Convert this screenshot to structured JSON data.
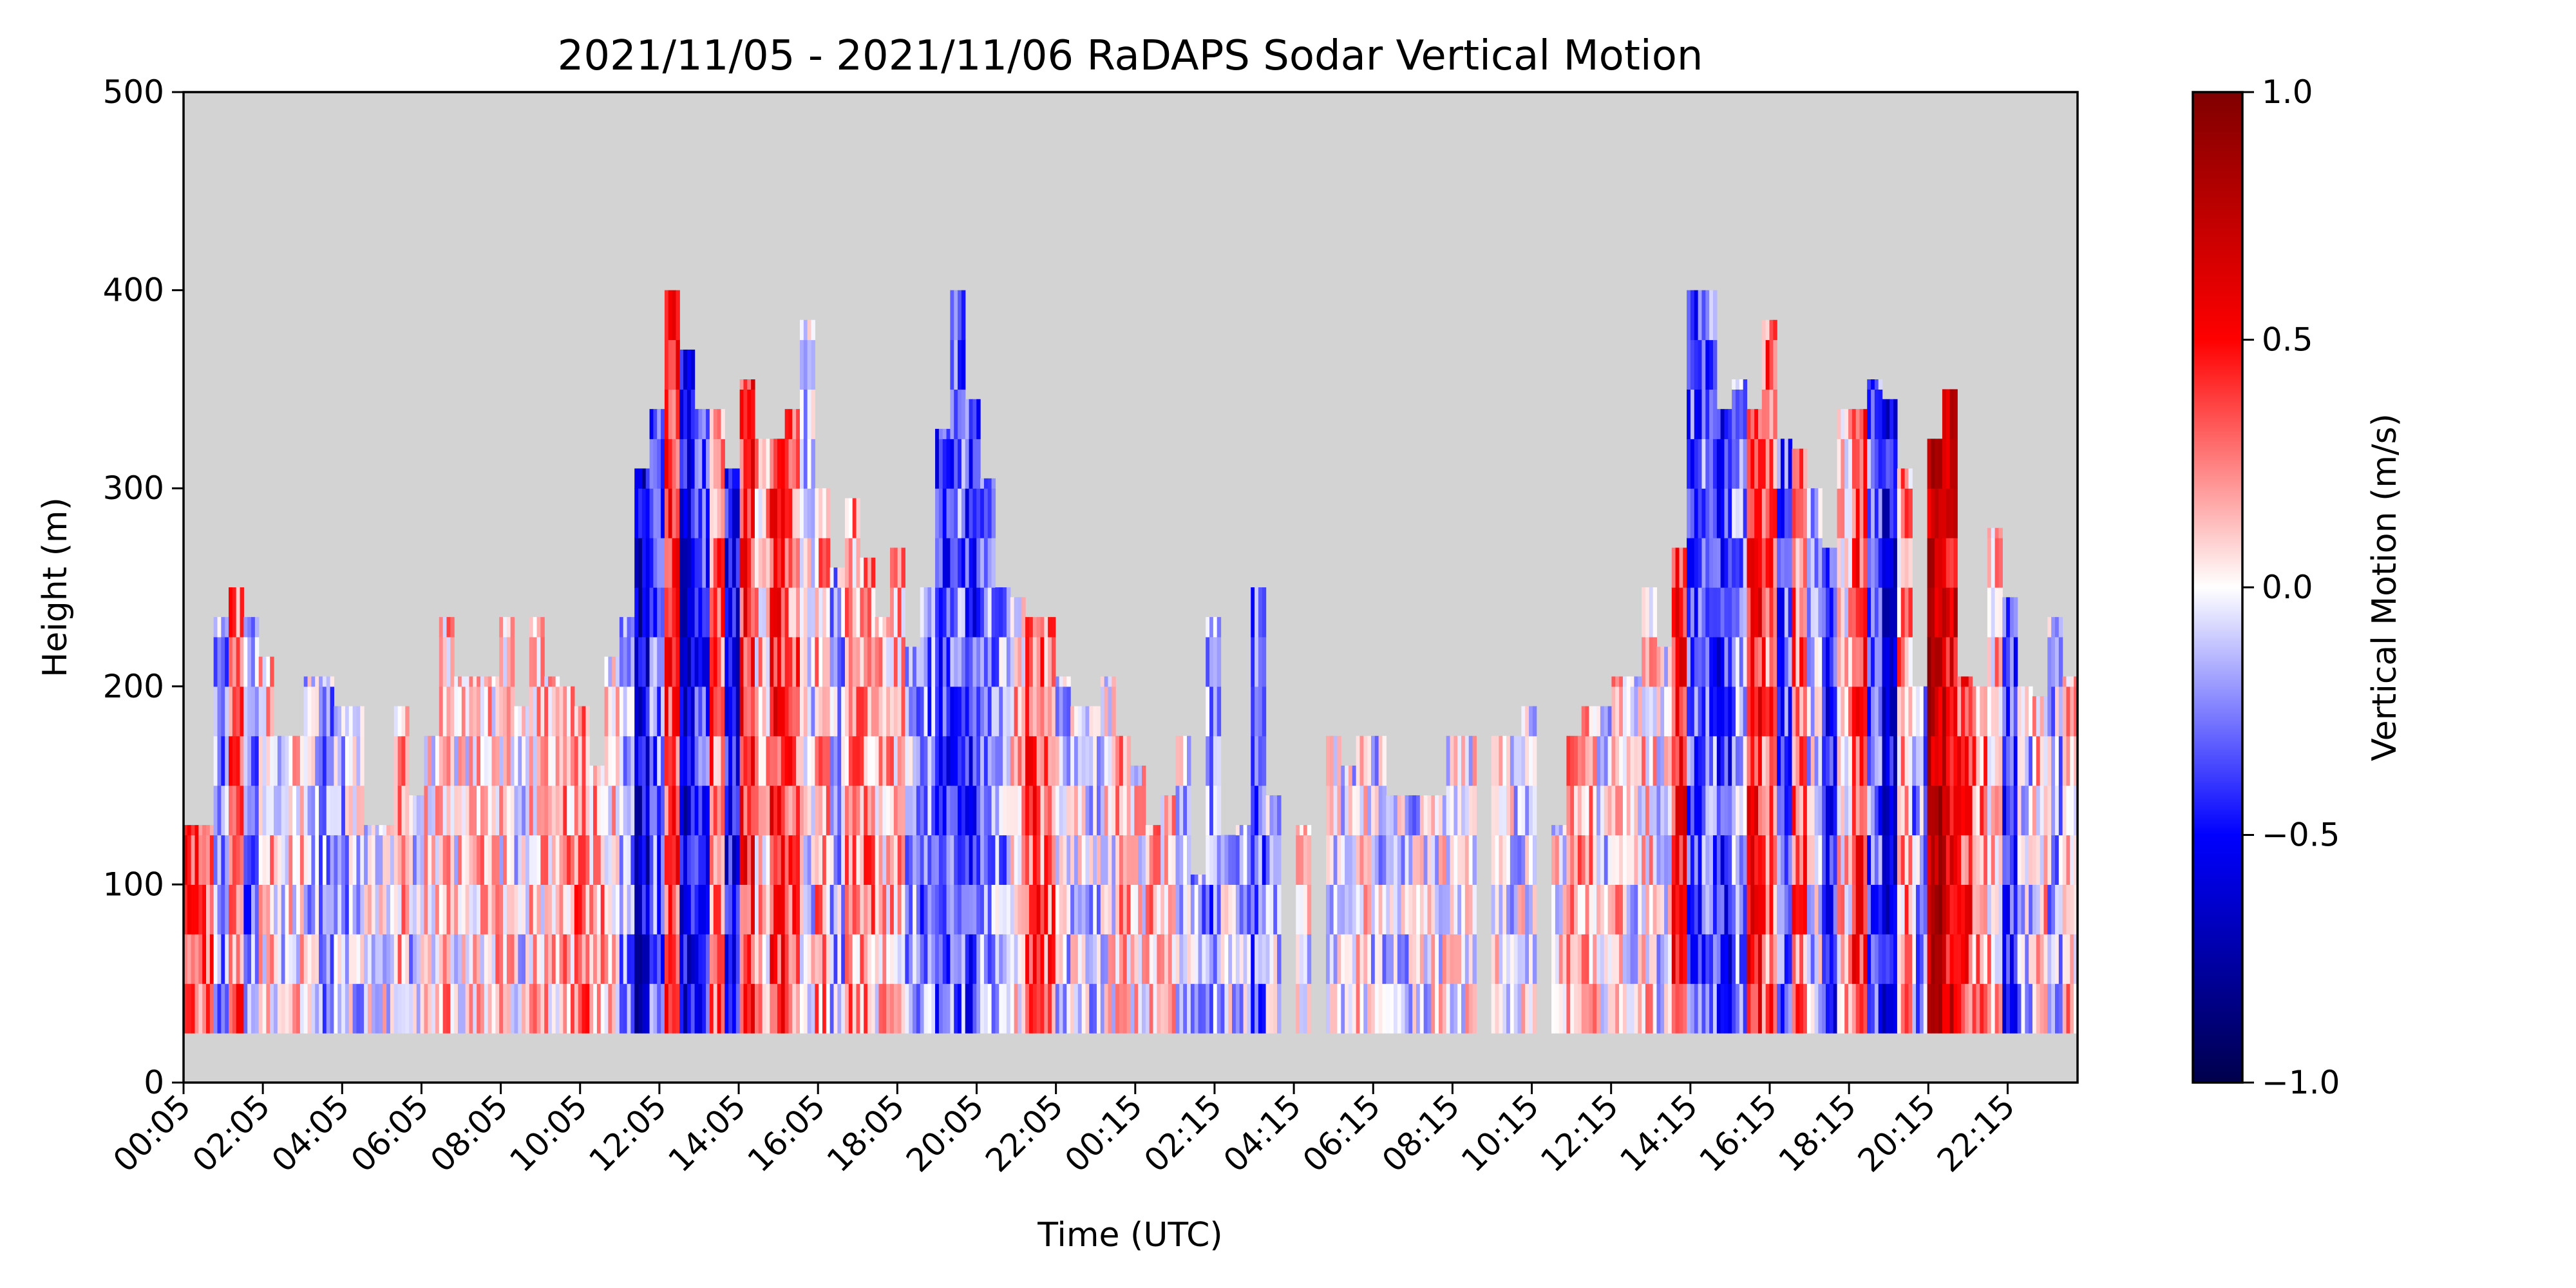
{
  "chart_data": {
    "type": "heatmap",
    "title": "2021/11/05 - 2021/11/06 RaDAPS Sodar Vertical Motion",
    "xlabel": "Time (UTC)",
    "ylabel": "Height (m)",
    "ylim": [
      0,
      500
    ],
    "y_ticks": [
      "0",
      "100",
      "200",
      "300",
      "400",
      "500"
    ],
    "x_ticks": [
      "00:05",
      "02:05",
      "04:05",
      "06:05",
      "08:05",
      "10:05",
      "12:05",
      "14:05",
      "16:05",
      "18:05",
      "20:05",
      "22:05",
      "00:15",
      "02:15",
      "04:15",
      "06:15",
      "08:15",
      "10:15",
      "12:15",
      "14:15",
      "16:15",
      "18:15",
      "20:15",
      "22:15"
    ],
    "colorbar": {
      "label": "Vertical Motion (m/s)",
      "range": [
        -1.0,
        1.0
      ],
      "ticks": [
        "−1.0",
        "−0.5",
        "0.0",
        "0.5",
        "1.0"
      ],
      "colormap": "seismic"
    },
    "background_color": "#d3d3d3",
    "grid": false,
    "min_height": 25,
    "profiles": [
      {
        "time_index": 0,
        "top": 130,
        "mean": 0.35
      },
      {
        "time_index": 1,
        "top": 130,
        "mean": 0.3
      },
      {
        "time_index": 2,
        "top": 235,
        "mean": -0.2
      },
      {
        "time_index": 3,
        "top": 250,
        "mean": 0.3
      },
      {
        "time_index": 4,
        "top": 235,
        "mean": -0.25
      },
      {
        "time_index": 5,
        "top": 215,
        "mean": 0.1
      },
      {
        "time_index": 6,
        "top": 175,
        "mean": -0.05
      },
      {
        "time_index": 7,
        "top": 175,
        "mean": 0.05
      },
      {
        "time_index": 8,
        "top": 205,
        "mean": -0.1
      },
      {
        "time_index": 9,
        "top": 205,
        "mean": -0.2
      },
      {
        "time_index": 10,
        "top": 190,
        "mean": -0.15
      },
      {
        "time_index": 11,
        "top": 190,
        "mean": -0.1
      },
      {
        "time_index": 12,
        "top": 130,
        "mean": 0.0
      },
      {
        "time_index": 13,
        "top": 130,
        "mean": 0.0
      },
      {
        "time_index": 14,
        "top": 190,
        "mean": 0.15
      },
      {
        "time_index": 15,
        "top": 145,
        "mean": -0.1
      },
      {
        "time_index": 16,
        "top": 175,
        "mean": 0.05
      },
      {
        "time_index": 17,
        "top": 235,
        "mean": 0.15
      },
      {
        "time_index": 18,
        "top": 205,
        "mean": 0.05
      },
      {
        "time_index": 19,
        "top": 205,
        "mean": 0.1
      },
      {
        "time_index": 20,
        "top": 205,
        "mean": 0.1
      },
      {
        "time_index": 21,
        "top": 235,
        "mean": 0.05
      },
      {
        "time_index": 22,
        "top": 190,
        "mean": -0.05
      },
      {
        "time_index": 23,
        "top": 235,
        "mean": 0.1
      },
      {
        "time_index": 24,
        "top": 205,
        "mean": 0.15
      },
      {
        "time_index": 25,
        "top": 200,
        "mean": 0.2
      },
      {
        "time_index": 26,
        "top": 190,
        "mean": 0.3
      },
      {
        "time_index": 27,
        "top": 160,
        "mean": 0.2
      },
      {
        "time_index": 28,
        "top": 215,
        "mean": 0.05
      },
      {
        "time_index": 29,
        "top": 235,
        "mean": -0.2
      },
      {
        "time_index": 30,
        "top": 310,
        "mean": -0.6
      },
      {
        "time_index": 31,
        "top": 340,
        "mean": -0.3
      },
      {
        "time_index": 32,
        "top": 400,
        "mean": 0.4
      },
      {
        "time_index": 33,
        "top": 370,
        "mean": -0.55
      },
      {
        "time_index": 34,
        "top": 340,
        "mean": -0.4
      },
      {
        "time_index": 35,
        "top": 340,
        "mean": 0.3
      },
      {
        "time_index": 36,
        "top": 310,
        "mean": -0.5
      },
      {
        "time_index": 37,
        "top": 355,
        "mean": 0.45
      },
      {
        "time_index": 38,
        "top": 325,
        "mean": 0.1
      },
      {
        "time_index": 39,
        "top": 325,
        "mean": 0.45
      },
      {
        "time_index": 40,
        "top": 340,
        "mean": 0.3
      },
      {
        "time_index": 41,
        "top": 385,
        "mean": -0.05
      },
      {
        "time_index": 42,
        "top": 300,
        "mean": 0.2
      },
      {
        "time_index": 43,
        "top": 260,
        "mean": -0.15
      },
      {
        "time_index": 44,
        "top": 295,
        "mean": 0.2
      },
      {
        "time_index": 45,
        "top": 265,
        "mean": 0.25
      },
      {
        "time_index": 46,
        "top": 235,
        "mean": 0.1
      },
      {
        "time_index": 47,
        "top": 270,
        "mean": 0.15
      },
      {
        "time_index": 48,
        "top": 220,
        "mean": -0.15
      },
      {
        "time_index": 49,
        "top": 250,
        "mean": -0.25
      },
      {
        "time_index": 50,
        "top": 330,
        "mean": -0.4
      },
      {
        "time_index": 51,
        "top": 400,
        "mean": -0.3
      },
      {
        "time_index": 52,
        "top": 345,
        "mean": -0.4
      },
      {
        "time_index": 53,
        "top": 305,
        "mean": -0.2
      },
      {
        "time_index": 54,
        "top": 250,
        "mean": -0.2
      },
      {
        "time_index": 55,
        "top": 245,
        "mean": 0.1
      },
      {
        "time_index": 56,
        "top": 235,
        "mean": 0.35
      },
      {
        "time_index": 57,
        "top": 235,
        "mean": 0.3
      },
      {
        "time_index": 58,
        "top": 205,
        "mean": -0.1
      },
      {
        "time_index": 59,
        "top": 190,
        "mean": -0.05
      },
      {
        "time_index": 60,
        "top": 190,
        "mean": -0.1
      },
      {
        "time_index": 61,
        "top": 205,
        "mean": 0.0
      },
      {
        "time_index": 62,
        "top": 175,
        "mean": 0.15
      },
      {
        "time_index": 63,
        "top": 160,
        "mean": 0.05
      },
      {
        "time_index": 64,
        "top": 130,
        "mean": 0.15
      },
      {
        "time_index": 65,
        "top": 145,
        "mean": 0.1
      },
      {
        "time_index": 66,
        "top": 175,
        "mean": -0.1
      },
      {
        "time_index": 67,
        "top": 105,
        "mean": -0.2
      },
      {
        "time_index": 68,
        "top": 235,
        "mean": -0.25
      },
      {
        "time_index": 69,
        "top": 125,
        "mean": -0.1
      },
      {
        "time_index": 70,
        "top": 130,
        "mean": -0.15
      },
      {
        "time_index": 71,
        "top": 250,
        "mean": -0.3
      },
      {
        "time_index": 72,
        "top": 145,
        "mean": -0.1
      },
      {
        "time_index": 73,
        "top": 0,
        "mean": 0.0
      },
      {
        "time_index": 74,
        "top": 130,
        "mean": 0.0
      },
      {
        "time_index": 75,
        "top": 0,
        "mean": 0.0
      },
      {
        "time_index": 76,
        "top": 175,
        "mean": -0.05
      },
      {
        "time_index": 77,
        "top": 160,
        "mean": -0.05
      },
      {
        "time_index": 78,
        "top": 175,
        "mean": 0.05
      },
      {
        "time_index": 79,
        "top": 175,
        "mean": -0.1
      },
      {
        "time_index": 80,
        "top": 145,
        "mean": -0.05
      },
      {
        "time_index": 81,
        "top": 145,
        "mean": -0.1
      },
      {
        "time_index": 82,
        "top": 145,
        "mean": -0.05
      },
      {
        "time_index": 83,
        "top": 145,
        "mean": 0.0
      },
      {
        "time_index": 84,
        "top": 175,
        "mean": -0.05
      },
      {
        "time_index": 85,
        "top": 175,
        "mean": 0.0
      },
      {
        "time_index": 86,
        "top": 0,
        "mean": 0.0
      },
      {
        "time_index": 87,
        "top": 175,
        "mean": 0.0
      },
      {
        "time_index": 88,
        "top": 175,
        "mean": -0.05
      },
      {
        "time_index": 89,
        "top": 190,
        "mean": 0.0
      },
      {
        "time_index": 90,
        "top": 0,
        "mean": 0.0
      },
      {
        "time_index": 91,
        "top": 130,
        "mean": 0.0
      },
      {
        "time_index": 92,
        "top": 175,
        "mean": 0.15
      },
      {
        "time_index": 93,
        "top": 190,
        "mean": 0.2
      },
      {
        "time_index": 94,
        "top": 190,
        "mean": -0.05
      },
      {
        "time_index": 95,
        "top": 205,
        "mean": 0.1
      },
      {
        "time_index": 96,
        "top": 205,
        "mean": -0.05
      },
      {
        "time_index": 97,
        "top": 250,
        "mean": 0.1
      },
      {
        "time_index": 98,
        "top": 220,
        "mean": -0.05
      },
      {
        "time_index": 99,
        "top": 270,
        "mean": 0.45
      },
      {
        "time_index": 100,
        "top": 400,
        "mean": -0.35
      },
      {
        "time_index": 101,
        "top": 400,
        "mean": -0.3
      },
      {
        "time_index": 102,
        "top": 340,
        "mean": -0.45
      },
      {
        "time_index": 103,
        "top": 355,
        "mean": -0.2
      },
      {
        "time_index": 104,
        "top": 340,
        "mean": 0.45
      },
      {
        "time_index": 105,
        "top": 385,
        "mean": 0.3
      },
      {
        "time_index": 106,
        "top": 325,
        "mean": -0.35
      },
      {
        "time_index": 107,
        "top": 320,
        "mean": 0.3
      },
      {
        "time_index": 108,
        "top": 300,
        "mean": -0.1
      },
      {
        "time_index": 109,
        "top": 270,
        "mean": -0.45
      },
      {
        "time_index": 110,
        "top": 340,
        "mean": 0.1
      },
      {
        "time_index": 111,
        "top": 340,
        "mean": 0.4
      },
      {
        "time_index": 112,
        "top": 355,
        "mean": -0.3
      },
      {
        "time_index": 113,
        "top": 345,
        "mean": -0.55
      },
      {
        "time_index": 114,
        "top": 310,
        "mean": 0.2
      },
      {
        "time_index": 115,
        "top": 200,
        "mean": -0.2
      },
      {
        "time_index": 116,
        "top": 325,
        "mean": 0.75
      },
      {
        "time_index": 117,
        "top": 350,
        "mean": 0.6
      },
      {
        "time_index": 118,
        "top": 205,
        "mean": 0.4
      },
      {
        "time_index": 119,
        "top": 200,
        "mean": 0.25
      },
      {
        "time_index": 120,
        "top": 280,
        "mean": 0.1
      },
      {
        "time_index": 121,
        "top": 245,
        "mean": -0.4
      },
      {
        "time_index": 122,
        "top": 200,
        "mean": -0.1
      },
      {
        "time_index": 123,
        "top": 195,
        "mean": 0.1
      },
      {
        "time_index": 124,
        "top": 235,
        "mean": -0.15
      },
      {
        "time_index": 125,
        "top": 205,
        "mean": 0.15
      }
    ]
  }
}
